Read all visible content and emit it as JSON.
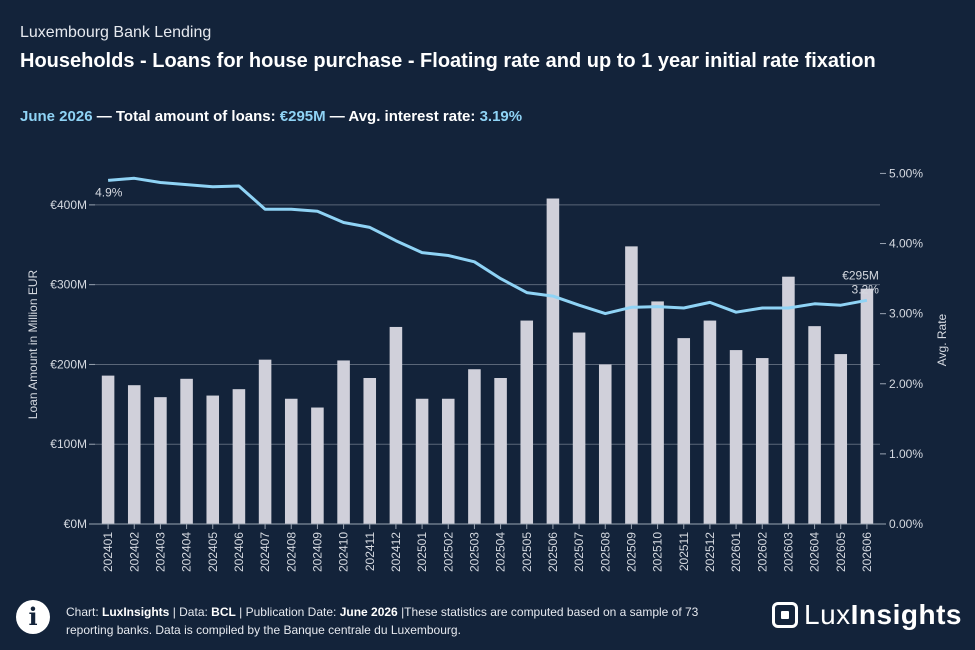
{
  "header": {
    "kicker": "Luxembourg Bank Lending",
    "title": "Households - Loans for house purchase - Floating rate and up to 1 year initial rate fixation",
    "sub_period": "June 2026",
    "sub_total_label": " — Total amount of loans: ",
    "sub_total_value": "€295M",
    "sub_rate_label": " — Avg. interest rate: ",
    "sub_rate_value": "3.19%"
  },
  "chart_data": {
    "type": "bar",
    "title": "Households - Loans for house purchase - Floating rate and up to 1 year initial rate fixation",
    "categories": [
      "202401",
      "202402",
      "202403",
      "202404",
      "202405",
      "202406",
      "202407",
      "202408",
      "202409",
      "202410",
      "202411",
      "202412",
      "202501",
      "202502",
      "202503",
      "202504",
      "202505",
      "202506",
      "202507",
      "202508",
      "202509",
      "202510",
      "202511",
      "202512",
      "202601",
      "202602",
      "202603",
      "202604",
      "202605",
      "202606"
    ],
    "series": [
      {
        "kind": "bar",
        "axis": "left",
        "color": "#d0d0da",
        "values": [
          186,
          174,
          159,
          182,
          161,
          169,
          206,
          157,
          146,
          205,
          183,
          247,
          157,
          157,
          194,
          183,
          255,
          408,
          240,
          200,
          348,
          279,
          233,
          255,
          218,
          208,
          310,
          248,
          213,
          295
        ]
      },
      {
        "kind": "line",
        "axis": "right",
        "color": "#8fd3f5",
        "values": [
          4.9,
          4.93,
          4.87,
          4.84,
          4.81,
          4.82,
          4.49,
          4.49,
          4.46,
          4.3,
          4.23,
          4.04,
          3.87,
          3.83,
          3.74,
          3.5,
          3.3,
          3.25,
          3.12,
          3.0,
          3.09,
          3.1,
          3.08,
          3.16,
          3.02,
          3.08,
          3.08,
          3.14,
          3.12,
          3.19
        ]
      }
    ],
    "ylabel": "Loan Amount in Million EUR",
    "ylabel_right": "Avg. Rate",
    "ylim": [
      0,
      450
    ],
    "ylim_right": [
      0,
      5.12
    ],
    "y_ticks": [
      0,
      100,
      200,
      300,
      400
    ],
    "y_tick_labels": [
      "€0M",
      "€100M",
      "€200M",
      "€300M",
      "€400M"
    ],
    "y_right_ticks": [
      0,
      1,
      2,
      3,
      4,
      5
    ],
    "y_right_tick_labels": [
      "0.00%",
      "1.00%",
      "2.00%",
      "3.00%",
      "4.00%",
      "5.00%"
    ],
    "annotations": {
      "first_rate": "4.9%",
      "last_amount": "€295M",
      "last_rate": "3.2%"
    },
    "grid": true
  },
  "footer": {
    "icon": "i",
    "chart_label": "Chart: ",
    "chart_value": "LuxInsights",
    "data_label": " | Data: ",
    "data_value": "BCL",
    "pub_label": " | Publication Date: ",
    "pub_value": "June 2026",
    "note": " |These statistics are computed based on a sample of 73 reporting banks. Data is compiled by the Banque centrale du Luxembourg."
  },
  "logo": {
    "text_light": "Lux",
    "text_bold": "Insights"
  }
}
